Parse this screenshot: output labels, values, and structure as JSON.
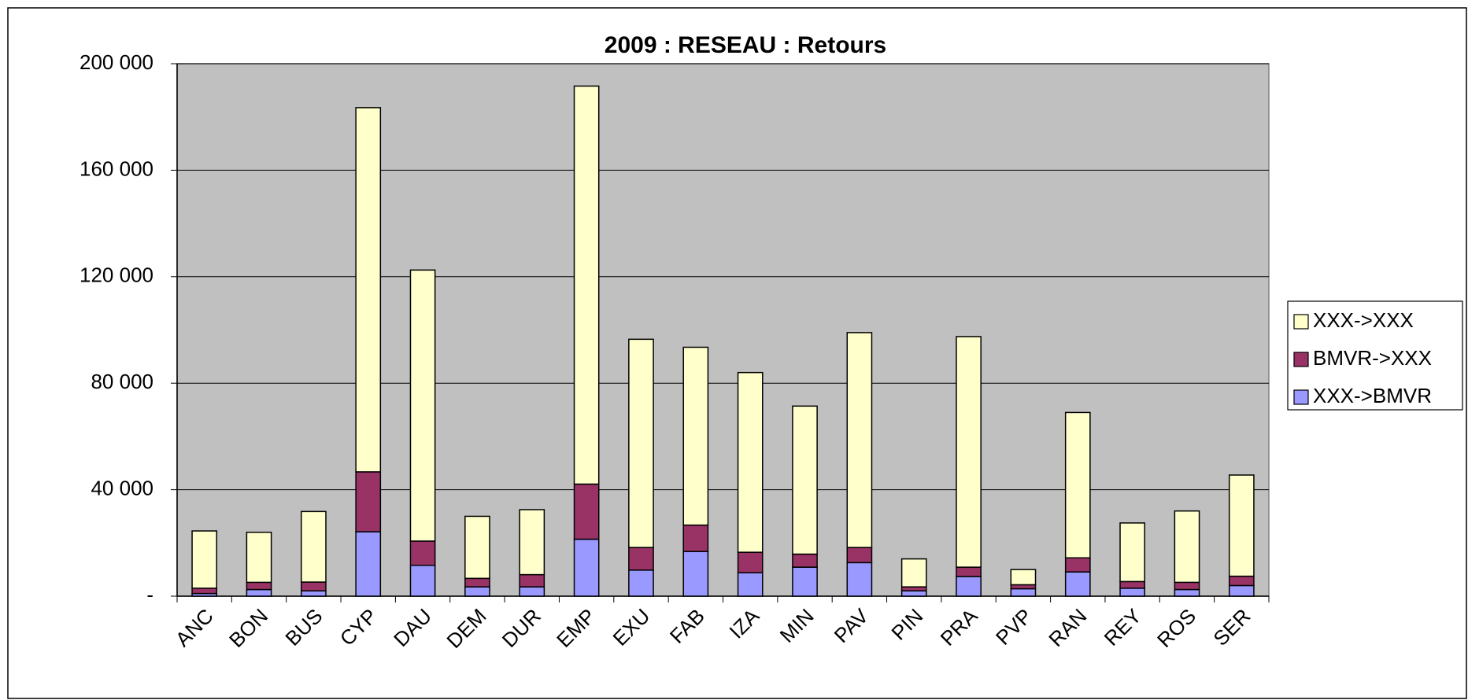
{
  "chart_data": {
    "type": "stacked_bar",
    "title": "2009 : RESEAU : Retours",
    "categories": [
      "ANC",
      "BON",
      "BUS",
      "CYP",
      "DAU",
      "DEM",
      "DUR",
      "EMP",
      "EXU",
      "FAB",
      "IZA",
      "MIN",
      "PAV",
      "PIN",
      "PRA",
      "PVP",
      "RAN",
      "REY",
      "ROS",
      "SER"
    ],
    "series": [
      {
        "name": "XXX->BMVR",
        "color": "#9999ff",
        "values": [
          1000,
          2500,
          2000,
          24200,
          11600,
          3500,
          3500,
          21400,
          9800,
          16800,
          8800,
          10900,
          12600,
          2000,
          7400,
          2800,
          9100,
          3000,
          2500,
          4000
        ]
      },
      {
        "name": "BMVR->XXX",
        "color": "#993366",
        "values": [
          2000,
          2700,
          3300,
          22500,
          9100,
          3200,
          4600,
          20700,
          8500,
          9900,
          7700,
          4900,
          5700,
          1500,
          3500,
          1500,
          5300,
          2500,
          2700,
          3500
        ]
      },
      {
        "name": "XXX->XXX",
        "color": "#ffffcc",
        "values": [
          21500,
          18800,
          26500,
          136800,
          101800,
          23300,
          24400,
          149500,
          78200,
          66800,
          67500,
          55600,
          80700,
          10500,
          86600,
          5700,
          54600,
          22000,
          26800,
          38000
        ]
      }
    ],
    "ylim": [
      0,
      200000
    ],
    "yticks": [
      {
        "value": 0,
        "label": "-"
      },
      {
        "value": 40000,
        "label": "40 000"
      },
      {
        "value": 80000,
        "label": "80 000"
      },
      {
        "value": 120000,
        "label": "120 000"
      },
      {
        "value": 160000,
        "label": "160 000"
      },
      {
        "value": 200000,
        "label": "200 000"
      }
    ],
    "grid": true,
    "legend": "right",
    "plot_background": "#c0c0c0"
  }
}
